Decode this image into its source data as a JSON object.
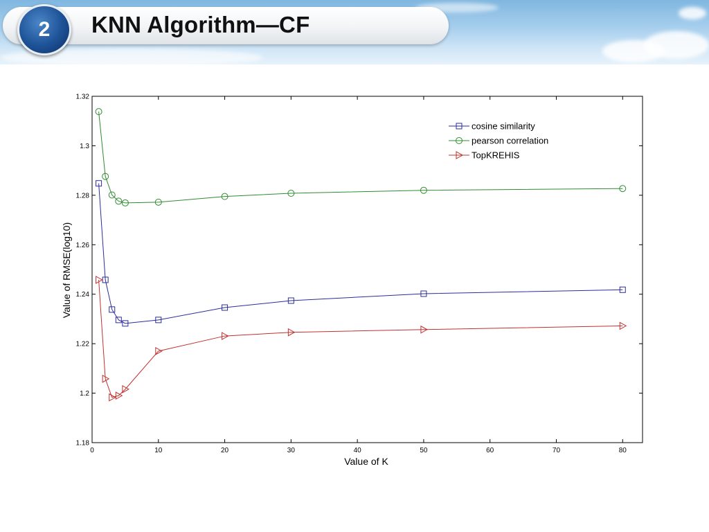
{
  "slide": {
    "number": "2",
    "title": "KNN Algorithm—CF"
  },
  "colors": {
    "cosine": "#2b2b9b",
    "pearson": "#2e8b2e",
    "topkrehis": "#c0302f"
  },
  "chart_data": {
    "type": "line",
    "title": "",
    "xlabel": "Value of K",
    "ylabel": "Value of RMSE(log10)",
    "xlim": [
      0,
      83
    ],
    "ylim": [
      1.18,
      1.32
    ],
    "xticks": [
      0,
      10,
      20,
      30,
      40,
      50,
      60,
      70,
      80
    ],
    "yticks": [
      1.18,
      1.2,
      1.22,
      1.24,
      1.26,
      1.28,
      1.3,
      1.32
    ],
    "ytick_labels": [
      "1.18",
      "1.2",
      "1.22",
      "1.24",
      "1.26",
      "1.28",
      "1.3",
      "1.32"
    ],
    "x": [
      1,
      2,
      3,
      4,
      5,
      10,
      20,
      30,
      50,
      80
    ],
    "legend_position": "top-right",
    "series": [
      {
        "name": "cosine similarity",
        "marker": "square",
        "color_key": "cosine",
        "values": [
          1.2848,
          1.2458,
          1.2338,
          1.2296,
          1.2282,
          1.2296,
          1.2346,
          1.2374,
          1.2402,
          1.2418
        ]
      },
      {
        "name": "pearson correlation",
        "marker": "circle",
        "color_key": "pearson",
        "values": [
          1.3138,
          1.2876,
          1.2801,
          1.2776,
          1.2769,
          1.2772,
          1.2795,
          1.2808,
          1.282,
          1.2827
        ]
      },
      {
        "name": "TopKREHIS",
        "marker": "triangle-right",
        "color_key": "topkrehis",
        "values": [
          1.2458,
          1.2058,
          1.1983,
          1.199,
          1.2016,
          1.217,
          1.2231,
          1.2246,
          1.2257,
          1.2272
        ]
      }
    ]
  }
}
